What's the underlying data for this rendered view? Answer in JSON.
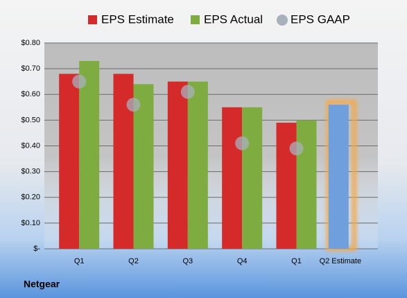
{
  "chart_data": {
    "type": "bar",
    "categories": [
      "Q1",
      "Q2",
      "Q3",
      "Q4",
      "Q1",
      "Q2 Estimate"
    ],
    "series": [
      {
        "name": "EPS Estimate",
        "color": "#d42a2a",
        "values": [
          0.68,
          0.68,
          0.65,
          0.55,
          0.49,
          null
        ]
      },
      {
        "name": "EPS Actual",
        "color": "#7fac41",
        "values": [
          0.73,
          0.64,
          0.65,
          0.55,
          0.5,
          null
        ]
      },
      {
        "name": "EPS GAAP",
        "color": "#a8b0bd",
        "values": [
          0.65,
          0.56,
          0.61,
          0.41,
          0.39,
          null
        ]
      }
    ],
    "highlight": {
      "value": 0.56,
      "color": "#6f9fdc",
      "glow": "#f5a94a"
    },
    "ylim": [
      0,
      0.8
    ],
    "yticks": [
      {
        "value": 0,
        "label": "$-"
      },
      {
        "value": 0.1,
        "label": "$0.10"
      },
      {
        "value": 0.2,
        "label": "$0.20"
      },
      {
        "value": 0.3,
        "label": "$0.30"
      },
      {
        "value": 0.4,
        "label": "$0.40"
      },
      {
        "value": 0.5,
        "label": "$0.50"
      },
      {
        "value": 0.6,
        "label": "$0.60"
      },
      {
        "value": 0.7,
        "label": "$0.70"
      },
      {
        "value": 0.8,
        "label": "$0.80"
      }
    ],
    "grid": true,
    "footer": "Netgear"
  }
}
